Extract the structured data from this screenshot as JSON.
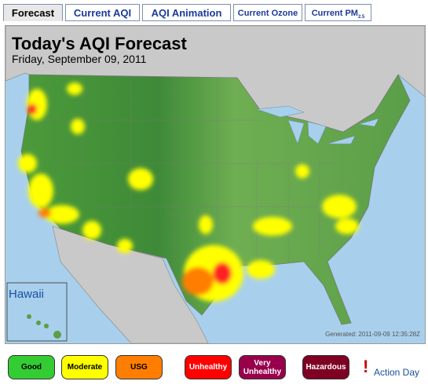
{
  "tabs": [
    {
      "label": "Forecast"
    },
    {
      "label": "Current AQI"
    },
    {
      "label": "AQI Animation"
    },
    {
      "label": "Current Ozone"
    },
    {
      "label": "Current PM",
      "sub": "2.5"
    }
  ],
  "map": {
    "title": "Today's AQI Forecast",
    "date": "Friday, September 09, 2011",
    "inset_label": "Hawaii",
    "generated": "Generated: 2011-09-09 12:35:28Z"
  },
  "legend": {
    "items": [
      "Good",
      "Moderate",
      "USG",
      "Unhealthy",
      "Very Unhealthy",
      "Hazardous"
    ],
    "action_mark": "!",
    "action_label": "Action Day"
  }
}
